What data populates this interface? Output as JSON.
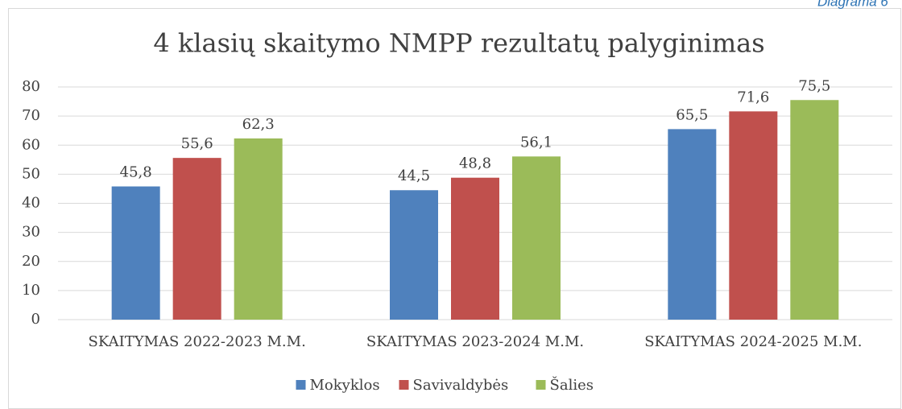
{
  "caption": "Diagrama 6",
  "chart_data": {
    "type": "bar",
    "title": "4 klasių skaitymo NMPP rezultatų palyginimas",
    "categories": [
      "SKAITYMAS 2022-2023 M.M.",
      "SKAITYMAS 2023-2024 M.M.",
      "SKAITYMAS 2024-2025 M.M."
    ],
    "series": [
      {
        "name": "Mokyklos",
        "color": "#4f81bd",
        "values": [
          45.8,
          44.5,
          65.5
        ],
        "value_labels": [
          "45,8",
          "44,5",
          "65,5"
        ]
      },
      {
        "name": "Savivaldybės",
        "color": "#c0504d",
        "values": [
          55.6,
          48.8,
          71.6
        ],
        "value_labels": [
          "55,6",
          "48,8",
          "71,6"
        ]
      },
      {
        "name": "Šalies",
        "color": "#9bbb59",
        "values": [
          62.3,
          56.1,
          75.5
        ],
        "value_labels": [
          "62,3",
          "56,1",
          "75,5"
        ]
      }
    ],
    "ylim": [
      0,
      80
    ],
    "yticks": [
      0,
      10,
      20,
      30,
      40,
      50,
      60,
      70,
      80
    ],
    "grid": true,
    "legend": "bottom"
  }
}
